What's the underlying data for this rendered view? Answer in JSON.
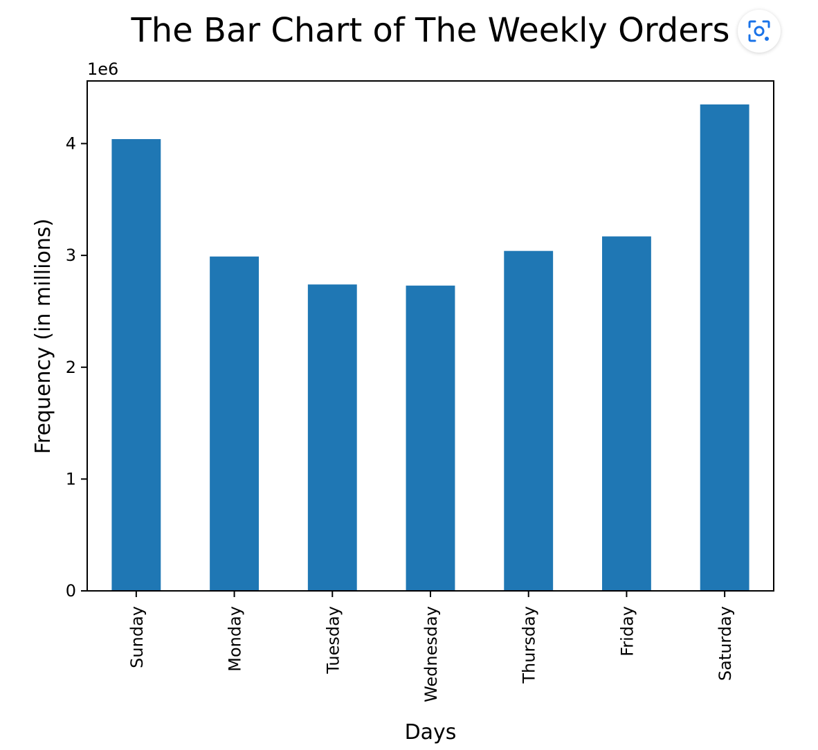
{
  "chart_data": {
    "type": "bar",
    "title": "The Bar Chart of The Weekly Orders",
    "xlabel": "Days",
    "ylabel": "Frequency (in millions)",
    "offset_label": "1e6",
    "categories": [
      "Sunday",
      "Monday",
      "Tuesday",
      "Wednesday",
      "Thursday",
      "Friday",
      "Saturday"
    ],
    "values": [
      4040000,
      2990000,
      2740000,
      2730000,
      3040000,
      3170000,
      4350000
    ],
    "ylim": [
      0,
      4560000
    ],
    "yticks": [
      0,
      1000000,
      2000000,
      3000000,
      4000000
    ],
    "ytick_labels": [
      "0",
      "1",
      "2",
      "3",
      "4"
    ],
    "bar_color": "#1f77b4",
    "grid": false
  },
  "icons": {
    "lens_button": "visual-search-icon",
    "lens_color": "#1a73e8"
  }
}
